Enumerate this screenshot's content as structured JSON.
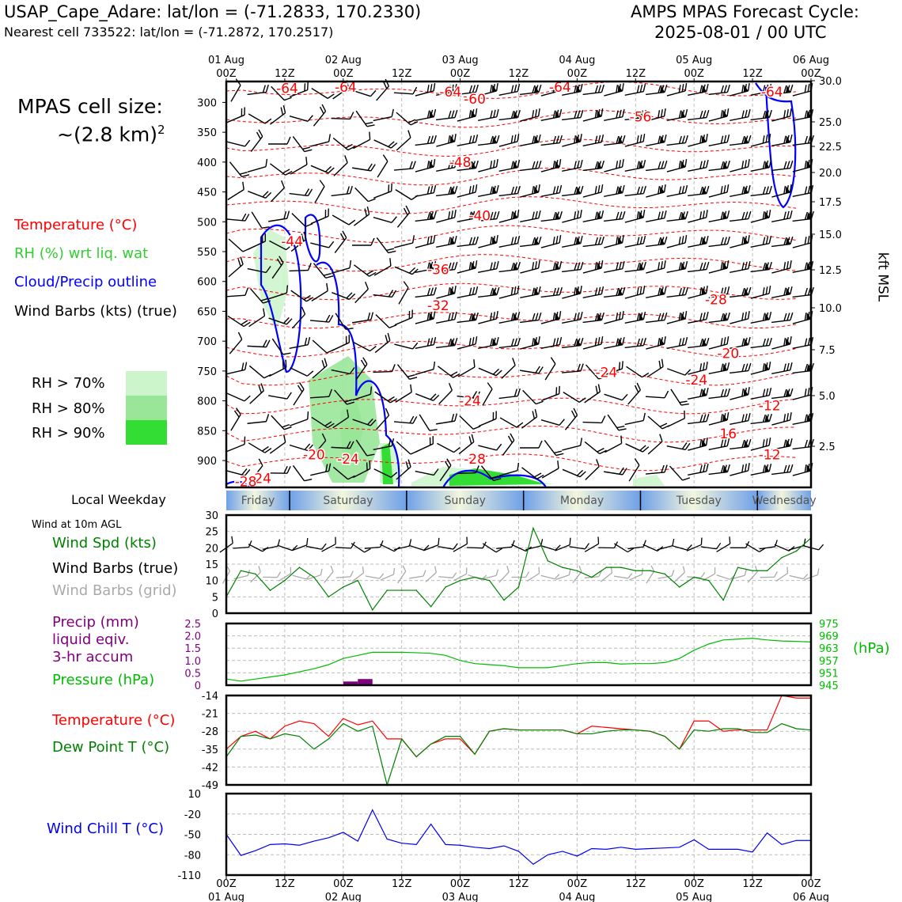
{
  "header": {
    "station": "USAP_Cape_Adare: lat/lon = (-71.2833, 170.2330)",
    "nearest_cell": "Nearest cell 733522: lat/lon = (-71.2872, 170.2517)",
    "model_line1": "AMPS MPAS Forecast Cycle:",
    "model_line2": "2025-08-01 / 00 UTC"
  },
  "legend": {
    "cell_size_label": "MPAS cell size:",
    "cell_size_value": "~(2.8 km)",
    "cell_size_exp": "2",
    "temperature": "Temperature (°C)",
    "rh": "RH (%) wrt liq. wat",
    "cloud": "Cloud/Precip outline",
    "wind_barbs": "Wind Barbs (kts) (true)",
    "rh70": "RH > 70%",
    "rh80": "RH > 80%",
    "rh90": "RH > 90%",
    "colors": {
      "temp": "#ff0000",
      "rh": "#33cc33",
      "cloud": "#0000ff",
      "rh70": "#ccf5cc",
      "rh80": "#99e699",
      "rh90": "#33dd33"
    }
  },
  "left_labels": {
    "weekday": "Local Weekday",
    "wind10m": "Wind at 10m AGL",
    "wind_spd": "Wind Spd (kts)",
    "barbs_true": "Wind Barbs (true)",
    "barbs_grid": "Wind Barbs (grid)",
    "precip1": "Precip (mm)",
    "precip2": "liquid eqiv.",
    "precip3": "3-hr accum",
    "pressure": "Pressure (hPa)",
    "temp": "Temperature (°C)",
    "dew": "Dew Point T (°C)",
    "windchill": "Wind Chill T (°C)",
    "hpa_unit": "(hPa)",
    "kft_label": "kft MSL"
  },
  "time_axis": {
    "top_days": [
      "01 Aug",
      "02 Aug",
      "03 Aug",
      "04 Aug",
      "05 Aug",
      "06 Aug"
    ],
    "tick_labels": [
      "00Z",
      "12Z",
      "00Z",
      "12Z",
      "00Z",
      "12Z",
      "00Z",
      "12Z",
      "00Z",
      "12Z",
      "00Z"
    ],
    "bottom_days": [
      "01 Aug",
      "02 Aug",
      "03 Aug",
      "04 Aug",
      "05 Aug",
      "06 Aug"
    ]
  },
  "weekdays": [
    "Friday",
    "Saturday",
    "Sunday",
    "Monday",
    "Tuesday",
    "Wednesday"
  ],
  "chart_data": [
    {
      "type": "heatmap",
      "name_hint": "cross-section",
      "y_pressure_ticks": [
        300,
        350,
        400,
        450,
        500,
        550,
        600,
        650,
        700,
        750,
        800,
        850,
        900
      ],
      "y_kft_ticks": [
        "30.0",
        "25.0",
        "22.5",
        "20.0",
        "17.5",
        "15.0",
        "12.5",
        "10.0",
        "7.5",
        "5.0",
        "2.5"
      ],
      "temperature_contour_labels": [
        {
          "label": "-64",
          "hour": 12.5,
          "p": 276
        },
        {
          "label": "-64",
          "hour": 24.5,
          "p": 274
        },
        {
          "label": "-64",
          "hour": 46,
          "p": 282
        },
        {
          "label": "-60",
          "hour": 51,
          "p": 294
        },
        {
          "label": "-64",
          "hour": 68.5,
          "p": 274
        },
        {
          "label": "-56",
          "hour": 85,
          "p": 324
        },
        {
          "label": "-64",
          "hour": 112,
          "p": 282
        },
        {
          "label": "-48",
          "hour": 48,
          "p": 400
        },
        {
          "label": "-40",
          "hour": 52,
          "p": 490
        },
        {
          "label": "-44",
          "hour": 13.5,
          "p": 533
        },
        {
          "label": "-36",
          "hour": 43.5,
          "p": 580
        },
        {
          "label": "-32",
          "hour": 43.5,
          "p": 640
        },
        {
          "label": "-28",
          "hour": 100.5,
          "p": 630
        },
        {
          "label": "-20",
          "hour": 103,
          "p": 720
        },
        {
          "label": "-24",
          "hour": 78,
          "p": 752
        },
        {
          "label": "-24",
          "hour": 96.5,
          "p": 765
        },
        {
          "label": "-24",
          "hour": 50,
          "p": 800
        },
        {
          "label": "-12",
          "hour": 111.5,
          "p": 808
        },
        {
          "label": "16",
          "hour": 103,
          "p": 855
        },
        {
          "label": "-20",
          "hour": 18,
          "p": 890
        },
        {
          "label": "-24",
          "hour": 25,
          "p": 897
        },
        {
          "label": "-28",
          "hour": 51,
          "p": 897
        },
        {
          "label": "-12",
          "hour": 111.5,
          "p": 890
        },
        {
          "label": "-24",
          "hour": 7,
          "p": 930
        },
        {
          "label": "-28",
          "hour": 4,
          "p": 935
        }
      ]
    },
    {
      "type": "line",
      "name_hint": "wind-speed",
      "x_hours": [
        0,
        3,
        6,
        9,
        12,
        15,
        18,
        21,
        24,
        27,
        30,
        33,
        36,
        39,
        42,
        45,
        48,
        51,
        54,
        57,
        60,
        63,
        66,
        69,
        72,
        75,
        78,
        81,
        84,
        87,
        90,
        93,
        96,
        99,
        102,
        105,
        108,
        111,
        114,
        117,
        120
      ],
      "series": [
        {
          "values": [
            5,
            13,
            12,
            7,
            10,
            14,
            11,
            5,
            8,
            10,
            1,
            7,
            7,
            7,
            2,
            8,
            10,
            11,
            10,
            4,
            8,
            26,
            16,
            14,
            13,
            11,
            14,
            14,
            13,
            13,
            12,
            8,
            11,
            10,
            4,
            14,
            13,
            13,
            17,
            19,
            23
          ]
        }
      ],
      "ylim": [
        0,
        30
      ],
      "y_ticks": [
        0,
        5,
        10,
        15,
        20,
        25,
        30
      ]
    },
    {
      "type": "bar",
      "name_hint": "precipitation",
      "x_hours": [
        27,
        30
      ],
      "values": [
        0.15,
        0.25
      ],
      "ylim": [
        0,
        2.5
      ],
      "y_ticks": [
        0,
        0.5,
        1.0,
        1.5,
        2.0,
        2.5
      ],
      "y_tick_labels": [
        "0",
        "0.5",
        "1.0",
        "1.5",
        "2.0",
        "2.5"
      ]
    },
    {
      "type": "line",
      "name_hint": "pressure",
      "x_hours": [
        0,
        3,
        6,
        9,
        12,
        15,
        18,
        21,
        24,
        27,
        30,
        33,
        36,
        39,
        42,
        45,
        48,
        51,
        54,
        57,
        60,
        63,
        66,
        69,
        72,
        75,
        78,
        81,
        84,
        87,
        90,
        93,
        96,
        99,
        102,
        105,
        108,
        111,
        114,
        117,
        120
      ],
      "series": [
        {
          "values": [
            948,
            947,
            948,
            949,
            950,
            951.5,
            953,
            955,
            958,
            959.5,
            961,
            961,
            961,
            960.8,
            960.5,
            959.5,
            957,
            955.5,
            955,
            954.5,
            953.5,
            953.5,
            953.5,
            954.5,
            955.5,
            956,
            956,
            955.3,
            955.5,
            955.5,
            956,
            958,
            962,
            965,
            967,
            967.4,
            967.8,
            967,
            966.5,
            966.3,
            966
          ]
        }
      ],
      "ylim": [
        945,
        975
      ],
      "y_tick_labels": [
        "975",
        "969",
        "963",
        "957",
        "951",
        "945"
      ]
    },
    {
      "type": "line",
      "name_hint": "temperature-dewpoint",
      "x_hours": [
        0,
        3,
        6,
        9,
        12,
        15,
        18,
        21,
        24,
        27,
        30,
        33,
        36,
        39,
        42,
        45,
        48,
        51,
        54,
        57,
        60,
        63,
        66,
        69,
        72,
        75,
        78,
        81,
        84,
        87,
        90,
        93,
        96,
        99,
        102,
        105,
        108,
        111,
        114,
        117,
        120
      ],
      "series": [
        {
          "values": [
            -35,
            -30,
            -28,
            -31,
            -26,
            -24,
            -25,
            -30,
            -23,
            -25.5,
            -24,
            -31,
            -31,
            -38,
            -33,
            -31,
            -31,
            -37,
            -28,
            -27,
            -27.5,
            -27.5,
            -27.5,
            -27.5,
            -29,
            -26,
            -26.5,
            -27,
            -27.5,
            -28,
            -30,
            -35,
            -24,
            -24,
            -28,
            -27.5,
            -27.5,
            -27.5,
            -14,
            -15,
            -15
          ]
        },
        {
          "values": [
            -38,
            -30,
            -29.5,
            -31,
            -29,
            -30,
            -35,
            -31,
            -25,
            -28,
            -26,
            -49,
            -31,
            -38,
            -33,
            -30,
            -30,
            -37,
            -28,
            -27,
            -27.5,
            -27.5,
            -27.5,
            -27.5,
            -29,
            -29,
            -28,
            -27.5,
            -27.5,
            -28,
            -30,
            -35,
            -27.5,
            -28,
            -27,
            -27,
            -28.5,
            -28.5,
            -25,
            -27,
            -27.5
          ]
        }
      ],
      "ylim": [
        -49,
        -14
      ],
      "y_ticks": [
        -14,
        -21,
        -28,
        -35,
        -42,
        -49
      ]
    },
    {
      "type": "line",
      "name_hint": "wind-chill",
      "x_hours": [
        0,
        3,
        6,
        9,
        12,
        15,
        18,
        21,
        24,
        27,
        30,
        33,
        36,
        39,
        42,
        45,
        48,
        51,
        54,
        57,
        60,
        63,
        66,
        69,
        72,
        75,
        78,
        81,
        84,
        87,
        90,
        93,
        96,
        99,
        102,
        105,
        108,
        111,
        114,
        117,
        120
      ],
      "series": [
        {
          "values": [
            -50,
            -81,
            -74,
            -65,
            -64,
            -66,
            -60,
            -55,
            -47,
            -60,
            -14,
            -57,
            -63,
            -65,
            -35,
            -65,
            -66,
            -69,
            -71,
            -67,
            -75,
            -94,
            -80,
            -75,
            -82,
            -71,
            -72,
            -69,
            -72,
            -71,
            -70,
            -69,
            -58,
            -72,
            -72,
            -72,
            -76,
            -48,
            -65,
            -59,
            -59
          ]
        }
      ],
      "ylim": [
        -110,
        10
      ],
      "y_ticks": [
        10,
        -20,
        -50,
        -80,
        -110
      ]
    }
  ]
}
